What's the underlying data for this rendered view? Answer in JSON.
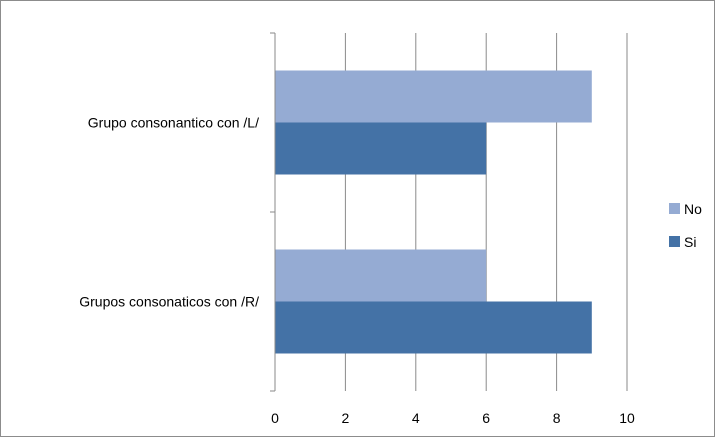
{
  "chart_data": {
    "type": "bar",
    "orientation": "horizontal",
    "categories": [
      "Grupo consonantico con /L/",
      "Grupos consonaticos con /R/"
    ],
    "series": [
      {
        "name": "No",
        "values": [
          9,
          6
        ],
        "color": "#95abd3"
      },
      {
        "name": "Si",
        "values": [
          6,
          9
        ],
        "color": "#4472a6"
      }
    ],
    "xlim": [
      0,
      10
    ],
    "xticks": [
      "0",
      "2",
      "4",
      "6",
      "8",
      "10"
    ],
    "title": "",
    "xlabel": "",
    "ylabel": "",
    "grid": true,
    "legend_position": "right"
  }
}
